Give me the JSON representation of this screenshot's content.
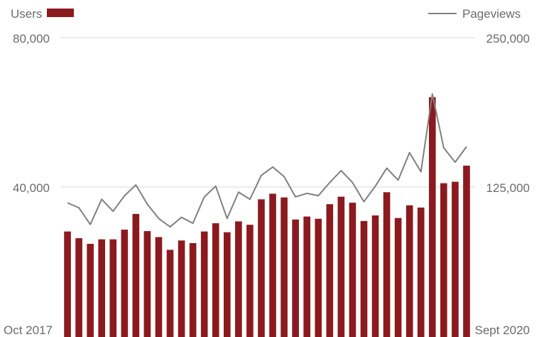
{
  "chart_data": {
    "type": "bar",
    "title": "",
    "x_start_label": "Oct 2017",
    "x_end_label": "Sept 2020",
    "legend": {
      "users_label": "Users",
      "pageviews_label": "Pageviews",
      "placement": "top"
    },
    "y_left": {
      "label": "",
      "ticks": [
        "40,000",
        "80,000"
      ],
      "ylim": [
        0,
        80000
      ]
    },
    "y_right": {
      "label": "",
      "ticks": [
        "125,000",
        "250,000"
      ],
      "ylim": [
        0,
        250000
      ]
    },
    "grid": true,
    "colors": {
      "bars": "#8b1a1f",
      "line": "#7f7f7f",
      "grid": "#d9d9d9",
      "text": "#6b6b6b"
    },
    "series": [
      {
        "name": "Users",
        "axis": "left",
        "type": "bar",
        "values": [
          28200,
          26400,
          24900,
          26100,
          26100,
          28700,
          32900,
          28300,
          26700,
          23300,
          25800,
          25100,
          28200,
          30400,
          28000,
          30900,
          30000,
          36800,
          38300,
          37300,
          31400,
          32200,
          31600,
          35500,
          37500,
          35900,
          31000,
          32500,
          38700,
          31800,
          35200,
          34600,
          64100,
          41100,
          41500,
          45800
        ]
      },
      {
        "name": "Pageviews",
        "axis": "right",
        "type": "line",
        "values": [
          112000,
          108000,
          94000,
          115000,
          105000,
          118000,
          127000,
          111000,
          99000,
          92000,
          100000,
          95000,
          117000,
          126000,
          99000,
          121000,
          115000,
          135000,
          142000,
          134000,
          117000,
          120000,
          118000,
          129000,
          139000,
          129000,
          113000,
          126000,
          141000,
          131000,
          154000,
          138000,
          203000,
          158000,
          146000,
          159000
        ]
      }
    ]
  }
}
